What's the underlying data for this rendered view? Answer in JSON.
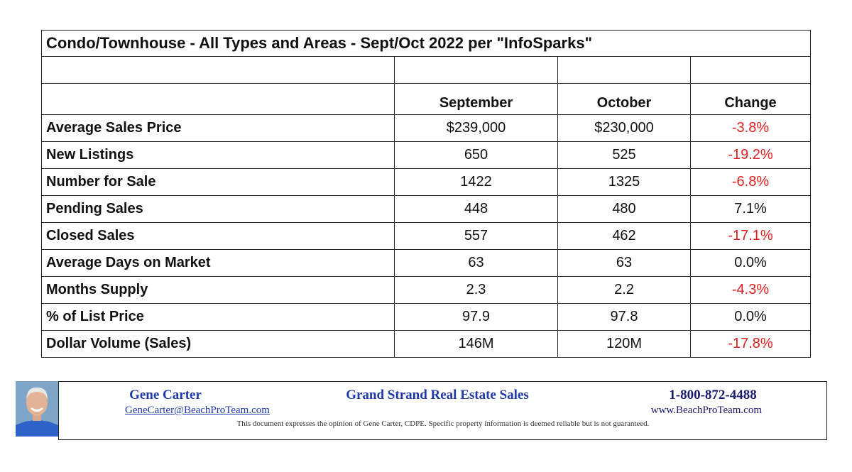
{
  "table": {
    "title": "Condo/Townhouse - All Types and Areas - Sept/Oct 2022 per \"InfoSparks\"",
    "header": [
      "September",
      "October",
      "Change"
    ],
    "rows": [
      [
        "Average Sales Price",
        "$239,000",
        "$230,000",
        "-3.8%"
      ],
      [
        "New Listings",
        "650",
        "525",
        "-19.2%"
      ],
      [
        "Number for Sale",
        "1422",
        "1325",
        "-6.8%"
      ],
      [
        "Pending Sales",
        "448",
        "480",
        "7.1%"
      ],
      [
        "Closed Sales",
        "557",
        "462",
        "-17.1%"
      ],
      [
        "Average Days on Market",
        "63",
        "63",
        "0.0%"
      ],
      [
        "Months Supply",
        "2.3",
        "2.2",
        "-4.3%"
      ],
      [
        "% of List Price",
        "97.9",
        "97.8",
        "0.0%"
      ],
      [
        "Dollar Volume (Sales)",
        "146M",
        "120M",
        "-17.8%"
      ]
    ]
  },
  "footer": {
    "name": "Gene Carter",
    "company": "Grand Strand Real Estate Sales",
    "phone": "1-800-872-4488",
    "email": "GeneCarter@BeachProTeam.com",
    "website": "www.BeachProTeam.com",
    "disclaimer": "This document expresses the opinion of Gene Carter, CDPE.  Specific property information is deemed reliable but is not guaranteed."
  }
}
